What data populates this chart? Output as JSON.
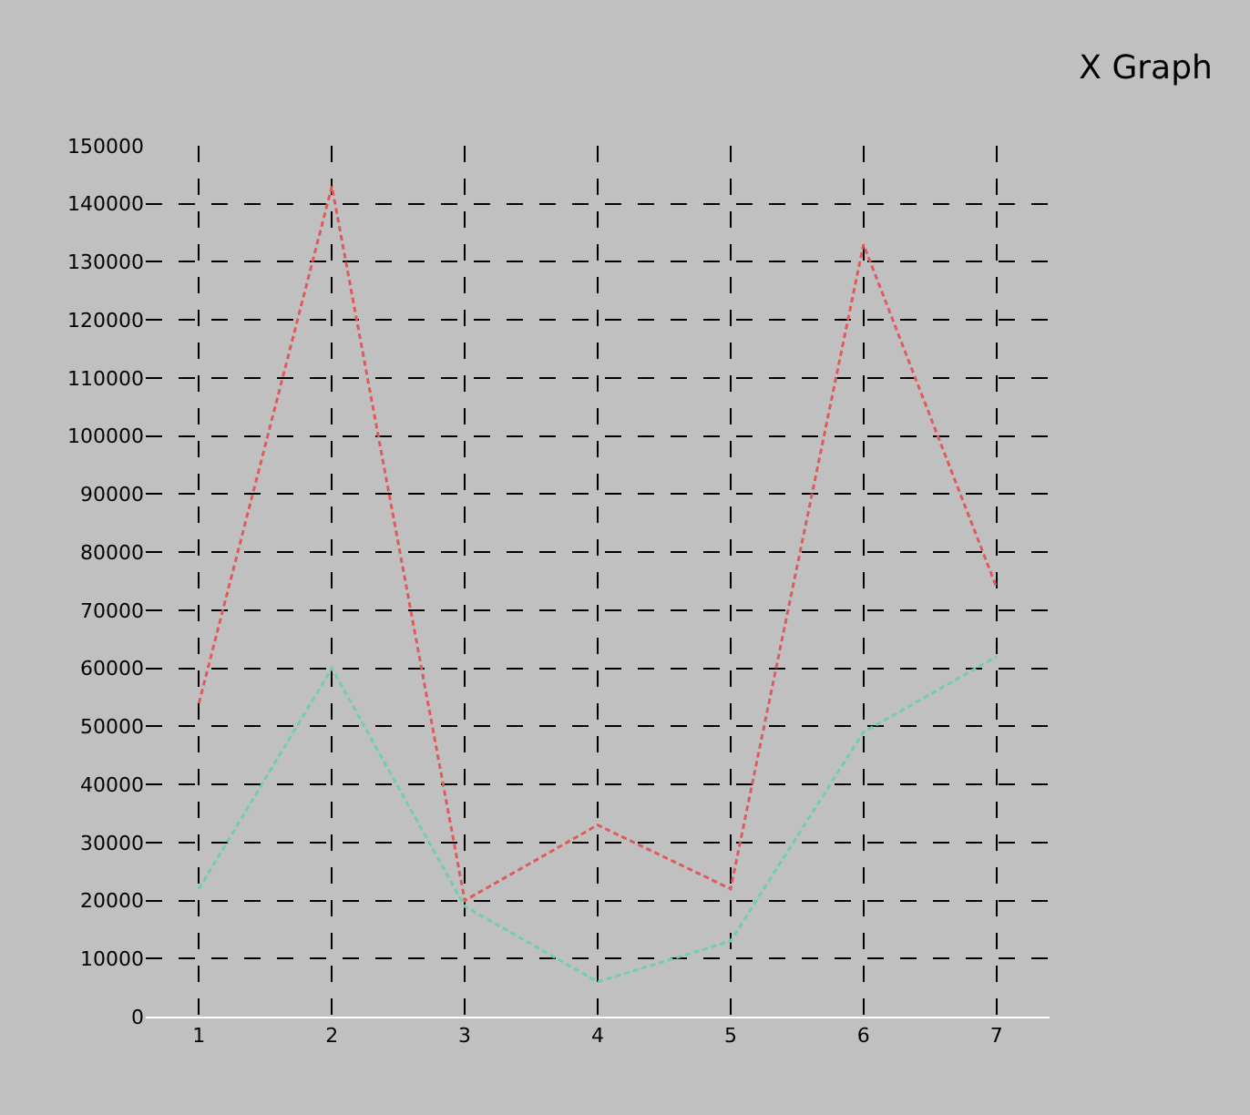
{
  "chart_data": {
    "type": "line",
    "title": "X Graph",
    "x": [
      1,
      2,
      3,
      4,
      5,
      6,
      7
    ],
    "series": [
      {
        "color": "#e05a5a",
        "values": [
          54000,
          143000,
          20000,
          33000,
          22000,
          133000,
          74000
        ]
      },
      {
        "color": "#6fcfa8",
        "values": [
          22000,
          60000,
          19000,
          6000,
          13000,
          49000,
          62000
        ]
      }
    ],
    "xlim": [
      0.6,
      7.4
    ],
    "xticks": [
      1,
      2,
      3,
      4,
      5,
      6,
      7
    ],
    "ylim": [
      0,
      150000
    ],
    "yticks": [
      0,
      10000,
      20000,
      30000,
      40000,
      50000,
      60000,
      70000,
      80000,
      90000,
      100000,
      110000,
      120000,
      130000,
      140000,
      150000
    ],
    "grid": true,
    "line_style": "dashed",
    "marker": "none"
  }
}
